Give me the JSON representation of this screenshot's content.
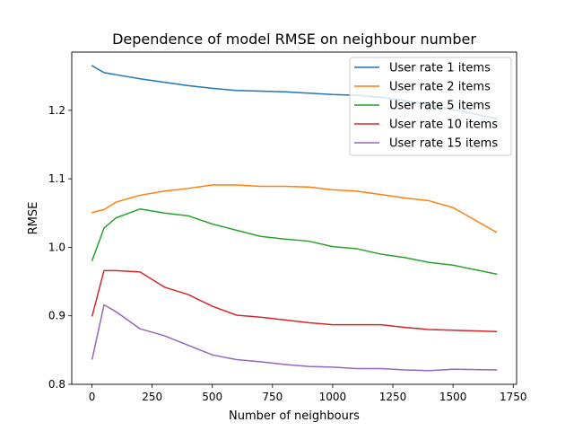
{
  "chart_data": {
    "type": "line",
    "title": "Dependence of model RMSE on neighbour number",
    "xlabel": "Number of neighbours",
    "ylabel": "RMSE",
    "xlim": [
      -84,
      1764
    ],
    "ylim": [
      0.8,
      1.285
    ],
    "xticks": [
      0,
      250,
      500,
      750,
      1000,
      1250,
      1500,
      1750
    ],
    "yticks": [
      0.8,
      0.9,
      1.0,
      1.1,
      1.2
    ],
    "ytick_labels": [
      "0.8",
      "0.9",
      "1.0",
      "1.1",
      "1.2"
    ],
    "grid": false,
    "legend_position": "top-right",
    "x": [
      1,
      50,
      100,
      200,
      300,
      400,
      500,
      600,
      700,
      800,
      900,
      1000,
      1100,
      1200,
      1300,
      1400,
      1500,
      1680
    ],
    "series": [
      {
        "name": "User rate 1 items",
        "color": "#1f77b4",
        "values": [
          1.265,
          1.255,
          1.252,
          1.246,
          1.241,
          1.236,
          1.232,
          1.229,
          1.228,
          1.227,
          1.225,
          1.223,
          1.222,
          1.219,
          1.214,
          1.208,
          1.201,
          1.188
        ]
      },
      {
        "name": "User rate 2 items",
        "color": "#ff7f0e",
        "values": [
          1.051,
          1.055,
          1.066,
          1.076,
          1.082,
          1.086,
          1.091,
          1.091,
          1.089,
          1.089,
          1.088,
          1.084,
          1.082,
          1.077,
          1.072,
          1.068,
          1.058,
          1.022
        ]
      },
      {
        "name": "User rate 5 items",
        "color": "#2ca02c",
        "values": [
          0.981,
          1.028,
          1.043,
          1.056,
          1.05,
          1.046,
          1.034,
          1.025,
          1.016,
          1.012,
          1.009,
          1.001,
          0.998,
          0.99,
          0.985,
          0.978,
          0.974,
          0.961
        ]
      },
      {
        "name": "User rate 10 items",
        "color": "#d62728",
        "values": [
          0.9,
          0.966,
          0.966,
          0.964,
          0.942,
          0.931,
          0.914,
          0.901,
          0.898,
          0.894,
          0.89,
          0.887,
          0.887,
          0.887,
          0.883,
          0.88,
          0.879,
          0.877
        ]
      },
      {
        "name": "User rate 15 items",
        "color": "#9467bd",
        "values": [
          0.837,
          0.916,
          0.906,
          0.881,
          0.871,
          0.857,
          0.843,
          0.836,
          0.833,
          0.829,
          0.826,
          0.825,
          0.823,
          0.823,
          0.821,
          0.82,
          0.822,
          0.821
        ]
      }
    ]
  }
}
